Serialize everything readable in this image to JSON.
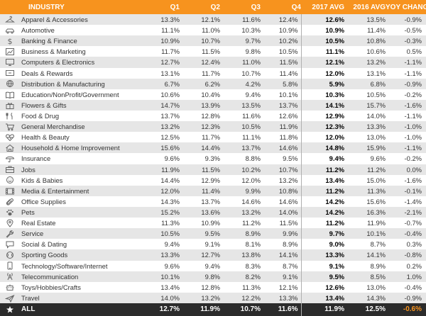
{
  "headers": {
    "industry": "INDUSTRY",
    "q1": "Q1",
    "q2": "Q2",
    "q3": "Q3",
    "q4": "Q4",
    "avg2017": "2017 AVG",
    "avg2016": "2016 AVG",
    "yoy": "YOY CHANGE"
  },
  "rows": [
    {
      "icon": "hanger-icon",
      "industry": "Apparel & Accessories",
      "q1": "13.3%",
      "q2": "12.1%",
      "q3": "11.6%",
      "q4": "12.4%",
      "avg2017": "12.6%",
      "avg2016": "13.5%",
      "yoy": "-0.9%"
    },
    {
      "icon": "car-icon",
      "industry": "Automotive",
      "q1": "11.1%",
      "q2": "11.0%",
      "q3": "10.3%",
      "q4": "10.9%",
      "avg2017": "10.9%",
      "avg2016": "11.4%",
      "yoy": "-0.5%"
    },
    {
      "icon": "dollar-icon",
      "industry": "Banking & Finance",
      "q1": "10.9%",
      "q2": "10.7%",
      "q3": "9.7%",
      "q4": "10.2%",
      "avg2017": "10.5%",
      "avg2016": "10.8%",
      "yoy": "-0.3%"
    },
    {
      "icon": "chart-icon",
      "industry": "Business & Marketing",
      "q1": "11.7%",
      "q2": "11.5%",
      "q3": "9.8%",
      "q4": "10.5%",
      "avg2017": "11.1%",
      "avg2016": "10.6%",
      "yoy": "0.5%"
    },
    {
      "icon": "monitor-icon",
      "industry": "Computers & Electronics",
      "q1": "12.7%",
      "q2": "12.4%",
      "q3": "11.0%",
      "q4": "11.5%",
      "avg2017": "12.1%",
      "avg2016": "13.2%",
      "yoy": "-1.1%"
    },
    {
      "icon": "tag-icon",
      "industry": "Deals & Rewards",
      "q1": "13.1%",
      "q2": "11.7%",
      "q3": "10.7%",
      "q4": "11.4%",
      "avg2017": "12.0%",
      "avg2016": "13.1%",
      "yoy": "-1.1%"
    },
    {
      "icon": "globe-icon",
      "industry": "Distribution & Manufacturing",
      "q1": "6.7%",
      "q2": "6.2%",
      "q3": "4.2%",
      "q4": "5.8%",
      "avg2017": "5.9%",
      "avg2016": "6.8%",
      "yoy": "-0.9%"
    },
    {
      "icon": "book-icon",
      "industry": "Education/NonProfit/Government",
      "q1": "10.6%",
      "q2": "10.4%",
      "q3": "9.4%",
      "q4": "10.1%",
      "avg2017": "10.3%",
      "avg2016": "10.5%",
      "yoy": "-0.2%"
    },
    {
      "icon": "gift-icon",
      "industry": "Flowers & Gifts",
      "q1": "14.7%",
      "q2": "13.9%",
      "q3": "13.5%",
      "q4": "13.7%",
      "avg2017": "14.1%",
      "avg2016": "15.7%",
      "yoy": "-1.6%"
    },
    {
      "icon": "food-icon",
      "industry": "Food & Drug",
      "q1": "13.7%",
      "q2": "12.8%",
      "q3": "11.6%",
      "q4": "12.6%",
      "avg2017": "12.9%",
      "avg2016": "14.0%",
      "yoy": "-1.1%"
    },
    {
      "icon": "cart-icon",
      "industry": "General Merchandise",
      "q1": "13.2%",
      "q2": "12.3%",
      "q3": "10.5%",
      "q4": "11.9%",
      "avg2017": "12.3%",
      "avg2016": "13.3%",
      "yoy": "-1.0%"
    },
    {
      "icon": "heart-pulse-icon",
      "industry": "Health & Beauty",
      "q1": "12.5%",
      "q2": "11.7%",
      "q3": "11.1%",
      "q4": "11.8%",
      "avg2017": "12.0%",
      "avg2016": "13.0%",
      "yoy": "-1.0%"
    },
    {
      "icon": "house-icon",
      "industry": "Household & Home Improvement",
      "q1": "15.6%",
      "q2": "14.4%",
      "q3": "13.7%",
      "q4": "14.6%",
      "avg2017": "14.8%",
      "avg2016": "15.9%",
      "yoy": "-1.1%"
    },
    {
      "icon": "umbrella-icon",
      "industry": "Insurance",
      "q1": "9.6%",
      "q2": "9.3%",
      "q3": "8.8%",
      "q4": "9.5%",
      "avg2017": "9.4%",
      "avg2016": "9.6%",
      "yoy": "-0.2%"
    },
    {
      "icon": "briefcase-icon",
      "industry": "Jobs",
      "q1": "11.9%",
      "q2": "11.5%",
      "q3": "10.2%",
      "q4": "10.7%",
      "avg2017": "11.2%",
      "avg2016": "11.2%",
      "yoy": "0.0%"
    },
    {
      "icon": "smiley-icon",
      "industry": "Kids & Babies",
      "q1": "14.4%",
      "q2": "12.9%",
      "q3": "12.0%",
      "q4": "13.2%",
      "avg2017": "13.4%",
      "avg2016": "15.0%",
      "yoy": "-1.6%"
    },
    {
      "icon": "film-icon",
      "industry": "Media & Entertainment",
      "q1": "12.0%",
      "q2": "11.4%",
      "q3": "9.9%",
      "q4": "10.8%",
      "avg2017": "11.2%",
      "avg2016": "11.3%",
      "yoy": "-0.1%"
    },
    {
      "icon": "paperclip-icon",
      "industry": "Office Supplies",
      "q1": "14.3%",
      "q2": "13.7%",
      "q3": "14.6%",
      "q4": "14.6%",
      "avg2017": "14.2%",
      "avg2016": "15.6%",
      "yoy": "-1.4%"
    },
    {
      "icon": "paw-icon",
      "industry": "Pets",
      "q1": "15.2%",
      "q2": "13.6%",
      "q3": "13.2%",
      "q4": "14.0%",
      "avg2017": "14.2%",
      "avg2016": "16.3%",
      "yoy": "-2.1%"
    },
    {
      "icon": "map-pin-icon",
      "industry": "Real Estate",
      "q1": "11.3%",
      "q2": "10.9%",
      "q3": "11.2%",
      "q4": "11.5%",
      "avg2017": "11.2%",
      "avg2016": "11.9%",
      "yoy": "-0.7%"
    },
    {
      "icon": "wrench-icon",
      "industry": "Service",
      "q1": "10.5%",
      "q2": "9.5%",
      "q3": "8.9%",
      "q4": "9.9%",
      "avg2017": "9.7%",
      "avg2016": "10.1%",
      "yoy": "-0.4%"
    },
    {
      "icon": "chat-icon",
      "industry": "Social & Dating",
      "q1": "9.4%",
      "q2": "9.1%",
      "q3": "8.1%",
      "q4": "8.9%",
      "avg2017": "9.0%",
      "avg2016": "8.7%",
      "yoy": "0.3%"
    },
    {
      "icon": "ball-icon",
      "industry": "Sporting Goods",
      "q1": "13.3%",
      "q2": "12.7%",
      "q3": "13.8%",
      "q4": "14.1%",
      "avg2017": "13.3%",
      "avg2016": "14.1%",
      "yoy": "-0.8%"
    },
    {
      "icon": "phone-icon",
      "industry": "Technology/Software/Internet",
      "q1": "9.6%",
      "q2": "9.4%",
      "q3": "8.3%",
      "q4": "8.7%",
      "avg2017": "9.1%",
      "avg2016": "8.9%",
      "yoy": "0.2%"
    },
    {
      "icon": "tower-icon",
      "industry": "Telecommunication",
      "q1": "10.1%",
      "q2": "9.8%",
      "q3": "8.2%",
      "q4": "9.1%",
      "avg2017": "9.5%",
      "avg2016": "8.5%",
      "yoy": "1.0%"
    },
    {
      "icon": "robot-icon",
      "industry": "Toys/Hobbies/Crafts",
      "q1": "13.4%",
      "q2": "12.8%",
      "q3": "11.3%",
      "q4": "12.1%",
      "avg2017": "12.6%",
      "avg2016": "13.0%",
      "yoy": "-0.4%"
    },
    {
      "icon": "plane-icon",
      "industry": "Travel",
      "q1": "14.0%",
      "q2": "13.2%",
      "q3": "12.2%",
      "q4": "13.3%",
      "avg2017": "13.4%",
      "avg2016": "14.3%",
      "yoy": "-0.9%"
    }
  ],
  "total": {
    "icon": "star-icon",
    "industry": "ALL",
    "q1": "12.7%",
    "q2": "11.9%",
    "q3": "10.7%",
    "q4": "11.6%",
    "avg2017": "11.9%",
    "avg2016": "12.5%",
    "yoy": "-0.6%"
  },
  "colors": {
    "header_bg": "#f7931e",
    "row_odd": "#e6e6e6",
    "row_even": "#ffffff",
    "footer_bg": "#2b2b2b",
    "icon_stroke": "#666666"
  }
}
